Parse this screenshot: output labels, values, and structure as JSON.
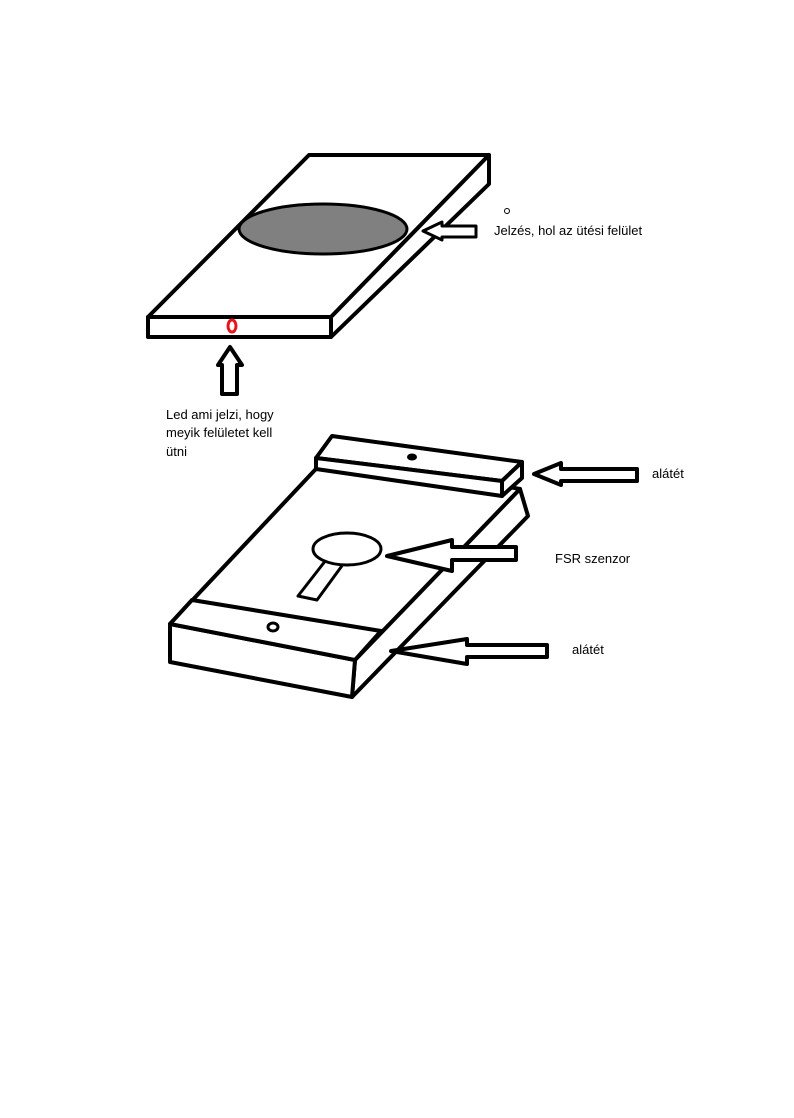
{
  "labels": {
    "impact_marking": "Jelzés, hol az ütési felület",
    "led_line1": "Led ami jelzi, hogy",
    "led_line2": "meyik felületet kell",
    "led_line3": "ütni",
    "washer_top": "alátét",
    "fsr_sensor": "FSR szenzor",
    "washer_bottom": "alátét"
  },
  "colors": {
    "stroke": "#000000",
    "impact_area_fill": "#808080",
    "led": "#e8141c",
    "background": "#ffffff"
  }
}
